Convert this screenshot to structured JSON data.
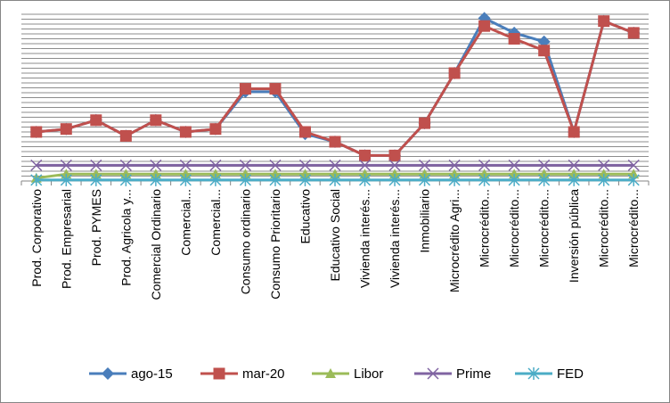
{
  "chart_data": {
    "type": "line",
    "title": "",
    "xlabel": "",
    "ylabel": "",
    "ylim": [
      0,
      17
    ],
    "grid": true,
    "legend_position": "bottom",
    "categories": [
      "Prod. Corporativo",
      "Prod. Empresarial",
      "Prod. PYMES",
      "Prod. Agricola y...",
      "Comercial Ordinario",
      "Comercial...",
      "Comercial...",
      "Consumo ordinario",
      "Consumo Prioritario",
      "Educativo",
      "Educativo Social",
      "Vivienda interés...",
      "Vivienda interés...",
      "Inmobiliario",
      "Microcrédito Agri...",
      "Microcrédito...",
      "Microcrédito...",
      "Microcrédito...",
      "Inversión pública",
      "Microcrédito...",
      "Microcrédito..."
    ],
    "series": [
      {
        "name": "ago-15",
        "color": "#4a7ebb",
        "marker": "diamond",
        "values": [
          5.0,
          5.3,
          6.2,
          4.6,
          6.2,
          5.0,
          5.3,
          9.1,
          9.1,
          4.8,
          4.0,
          2.6,
          2.6,
          5.9,
          11.0,
          16.6,
          15.1,
          14.2,
          5.0,
          16.3,
          15.1
        ]
      },
      {
        "name": "mar-20",
        "color": "#c0504d",
        "marker": "square",
        "values": [
          5.0,
          5.3,
          6.2,
          4.6,
          6.2,
          5.0,
          5.3,
          9.4,
          9.4,
          5.0,
          4.0,
          2.6,
          2.6,
          5.9,
          11.0,
          15.8,
          14.5,
          13.3,
          5.0,
          16.3,
          15.1
        ]
      },
      {
        "name": "Libor",
        "color": "#9bbb59",
        "marker": "triangle",
        "values": [
          0.3,
          0.7,
          0.7,
          0.7,
          0.7,
          0.7,
          0.7,
          0.7,
          0.7,
          0.7,
          0.7,
          0.7,
          0.7,
          0.7,
          0.7,
          0.7,
          0.7,
          0.7,
          0.7,
          0.7,
          0.7
        ]
      },
      {
        "name": "Prime",
        "color": "#8064a2",
        "marker": "x",
        "values": [
          1.6,
          1.6,
          1.6,
          1.6,
          1.6,
          1.6,
          1.6,
          1.6,
          1.6,
          1.6,
          1.6,
          1.6,
          1.6,
          1.6,
          1.6,
          1.6,
          1.6,
          1.6,
          1.6,
          1.6,
          1.6
        ]
      },
      {
        "name": "FED",
        "color": "#4bacc6",
        "marker": "star",
        "values": [
          0.1,
          0.1,
          0.1,
          0.1,
          0.1,
          0.1,
          0.1,
          0.1,
          0.1,
          0.1,
          0.1,
          0.1,
          0.1,
          0.1,
          0.1,
          0.1,
          0.1,
          0.1,
          0.1,
          0.1,
          0.1
        ]
      }
    ]
  }
}
